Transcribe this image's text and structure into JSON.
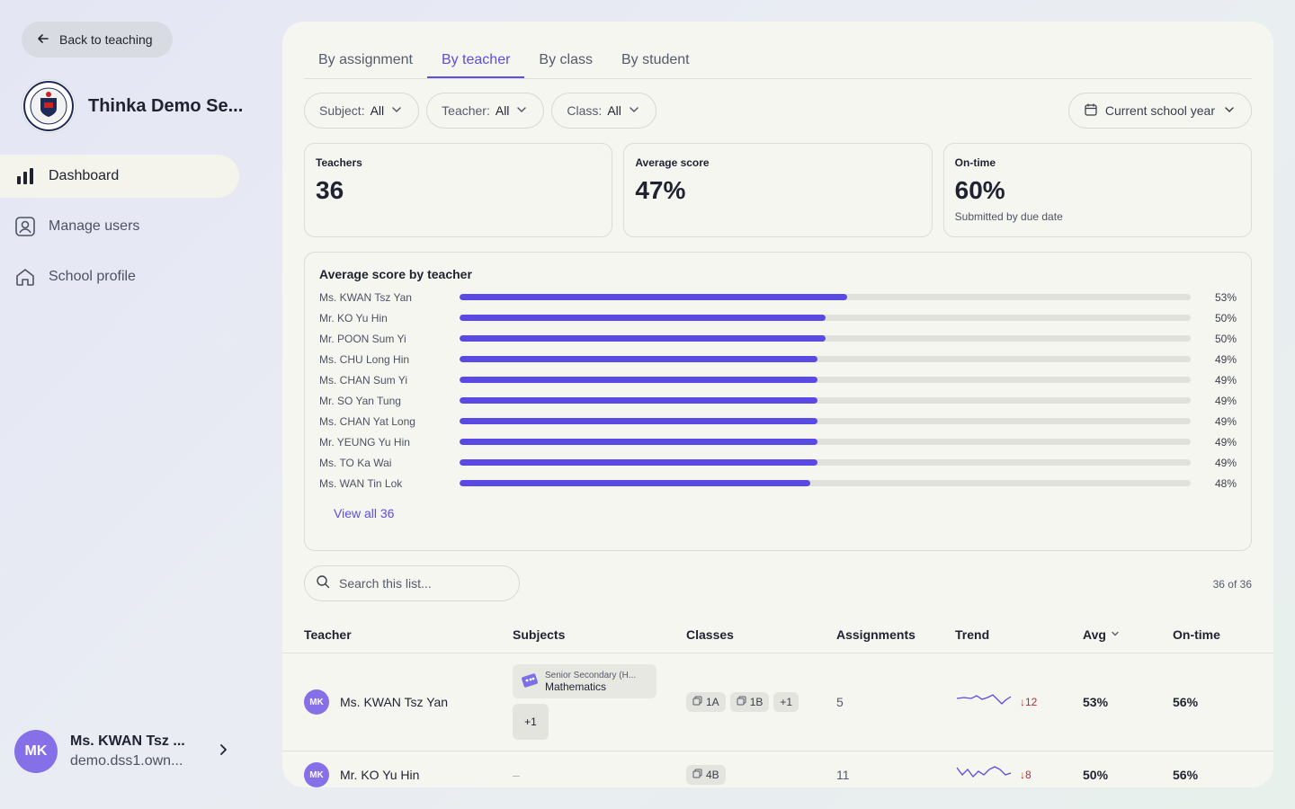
{
  "sidebar": {
    "back_label": "Back to teaching",
    "school_name": "Thinka Demo Se...",
    "nav": [
      {
        "label": "Dashboard",
        "icon": "bar-chart-icon",
        "active": true
      },
      {
        "label": "Manage users",
        "icon": "user-icon",
        "active": false
      },
      {
        "label": "School profile",
        "icon": "home-icon",
        "active": false
      }
    ],
    "user": {
      "initials": "MK",
      "name": "Ms. KWAN Tsz ...",
      "email": "demo.dss1.own..."
    }
  },
  "tabs": [
    {
      "label": "By assignment",
      "active": false
    },
    {
      "label": "By teacher",
      "active": true
    },
    {
      "label": "By class",
      "active": false
    },
    {
      "label": "By student",
      "active": false
    }
  ],
  "filters": {
    "subject": {
      "label": "Subject:",
      "value": "All"
    },
    "teacher": {
      "label": "Teacher:",
      "value": "All"
    },
    "class": {
      "label": "Class:",
      "value": "All"
    },
    "period": "Current school year"
  },
  "stats": {
    "teachers": {
      "label": "Teachers",
      "value": "36"
    },
    "average": {
      "label": "Average score",
      "value": "47%"
    },
    "ontime": {
      "label": "On-time",
      "value": "60%",
      "sub": "Submitted by due date"
    }
  },
  "chart_data": {
    "type": "bar",
    "title": "Average score by teacher",
    "categories": [
      "Ms. KWAN Tsz Yan",
      "Mr. KO Yu Hin",
      "Mr. POON Sum Yi",
      "Ms. CHU Long Hin",
      "Ms. CHAN Sum Yi",
      "Mr. SO Yan Tung",
      "Ms. CHAN Yat Long",
      "Mr. YEUNG Yu Hin",
      "Ms. TO Ka Wai",
      "Ms. WAN Tin Lok"
    ],
    "values": [
      53,
      50,
      50,
      49,
      49,
      49,
      49,
      49,
      49,
      48
    ],
    "labels": [
      "53%",
      "50%",
      "50%",
      "49%",
      "49%",
      "49%",
      "49%",
      "49%",
      "49%",
      "48%"
    ],
    "xlim": [
      0,
      100
    ],
    "color": "#5a4ae3"
  },
  "view_all": "View all 36",
  "search": {
    "placeholder": "Search this list..."
  },
  "count_text": "36 of 36",
  "table": {
    "headers": {
      "teacher": "Teacher",
      "subjects": "Subjects",
      "classes": "Classes",
      "assignments": "Assignments",
      "trend": "Trend",
      "avg": "Avg",
      "ontime": "On-time"
    },
    "rows": [
      {
        "initials": "MK",
        "name": "Ms. KWAN Tsz Yan",
        "subject_group": "Senior Secondary (H...",
        "subject": "Mathematics",
        "subject_more": "+1",
        "classes": [
          "1A",
          "1B"
        ],
        "classes_more": "+1",
        "assignments": "5",
        "trend_delta": "↓12",
        "avg": "53%",
        "ontime": "56%"
      },
      {
        "initials": "MK",
        "name": "Mr. KO Yu Hin",
        "subject_empty": "–",
        "classes": [
          "4B"
        ],
        "assignments": "11",
        "trend_delta": "↓8",
        "avg": "50%",
        "ontime": "56%"
      }
    ]
  },
  "colors": {
    "accent": "#5b4de3",
    "bar": "#5a4ae3",
    "avatar": "#8570e8",
    "down": "#b22f2f"
  }
}
